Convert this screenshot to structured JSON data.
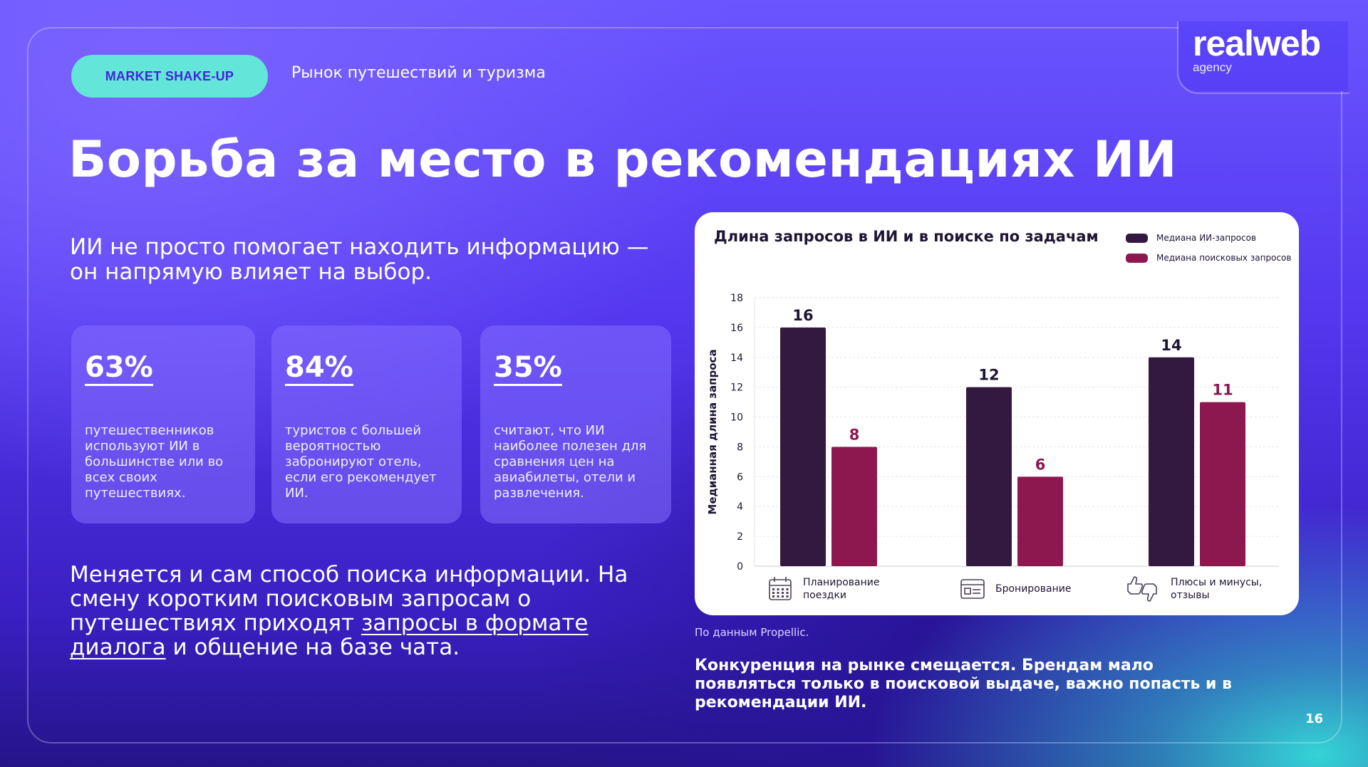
{
  "logo": {
    "main": "realweb",
    "sub": "agency"
  },
  "header": {
    "tag": "MARKET SHAKE-UP",
    "tag_desc": "Рынок путешествий и туризма"
  },
  "title": "Борьба за место в рекомендациях ИИ",
  "lead": "ИИ не просто помогает находить информацию — он напрямую влияет на выбор.",
  "stats": [
    {
      "value": "63%",
      "text": "путешественников используют ИИ в большинстве или во всех своих путешествиях."
    },
    {
      "value": "84%",
      "text": "туристов с большей вероятностью забронируют отель, если его рекомендует ИИ."
    },
    {
      "value": "35%",
      "text": "считают, что ИИ наиболее полезен для сравнения цен на авиабилеты, отели и развлечения."
    }
  ],
  "bottom": {
    "text_before": "Меняется и сам способ поиска информации. На смену коротким поисковым запросам о путешествиях приходят ",
    "text_link": "запросы в формате диалога",
    "text_after": " и общение на базе чата."
  },
  "source": "По данным Propellic.",
  "conclusion": "Конкуренция на рынке смещается. Брендам мало появляться только в поисковой выдаче, важно попасть и в рекомендации ИИ.",
  "page_number": "16",
  "colors": {
    "ai": "#33193f",
    "search": "#8d1850",
    "tag_bg": "#63e6d9",
    "tag_text": "#4128d8"
  },
  "chart_data": {
    "type": "bar",
    "title": "Длина запросов в ИИ и в поиске по задачам",
    "ylabel": "Медианная длина запроса",
    "xlabel": "",
    "ylim": [
      0,
      18
    ],
    "yticks": [
      0,
      2,
      4,
      6,
      8,
      10,
      12,
      14,
      16,
      18
    ],
    "grid": true,
    "legend_position": "top-right",
    "categories": [
      "Планирование поездки",
      "Бронирование",
      "Плюсы и минусы, отзывы"
    ],
    "category_icons": [
      "calendar-icon",
      "booking-form-icon",
      "thumbs-up-down-icon"
    ],
    "series": [
      {
        "name": "Медиана ИИ-запросов",
        "values": [
          16,
          12,
          14
        ],
        "color": "#33193f"
      },
      {
        "name": "Медиана поисковых запросов",
        "values": [
          8,
          6,
          11
        ],
        "color": "#8d1850"
      }
    ]
  }
}
